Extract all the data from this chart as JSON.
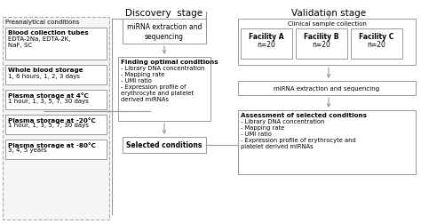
{
  "background_color": "#ffffff",
  "title_discovery": "Discovery  stage",
  "title_validation": "Validation stage",
  "fig_width": 4.74,
  "fig_height": 2.53,
  "dpi": 100,
  "box_edge_color": "#999999",
  "arrow_color": "#999999",
  "text_color": "#000000",
  "preanalytical_label": "Preanalytical conditions",
  "blood_tubes_title": "Blood collection tubes",
  "blood_tubes_text": "EDTA-2Na, EDTA-2K,\nNaF, SC",
  "whole_blood_title": "Whole blood storage",
  "whole_blood_text": "1, 6 hours, 1, 2, 3 days",
  "plasma_4_title": "Plasma storage at 4°C",
  "plasma_4_text": "1 hour, 1, 3, 5, 7, 30 days",
  "plasma_20_title": "Plasma storage at -20°C",
  "plasma_20_text": "1 hour, 1, 3, 5, 7, 30 days",
  "plasma_80_title": "Plasma storage at -80°C",
  "plasma_80_text": "3, 4, 5 years",
  "mirna_extract_disc": "miRNA extraction and\nsequencing",
  "finding_title": "Finding optimal conditions",
  "finding_text": "- Library DNA concentration\n- Mapping rate\n- UMI ratio\n- Expression profile of\nerythrocyte and platelet\nderived miRNAs",
  "selected_cond": "Selected conditions",
  "clinical_label": "Clinical sample collection",
  "facility_a_line1": "Facility A",
  "facility_a_line2": "n=20",
  "facility_b_line1": "Facility B",
  "facility_b_line2": "n=20",
  "facility_c_line1": "Facility C",
  "facility_c_line2": "n=20",
  "mirna_extract_val": "miRNA extraction and sequencing",
  "assessment_title": "Assessment of selected conditions",
  "assessment_text": "- Library DNA concentration\n- Mapping rate\n- UMI ratio\n- Expression profile of erythrocyte and\nplatelet derived miRNAs"
}
